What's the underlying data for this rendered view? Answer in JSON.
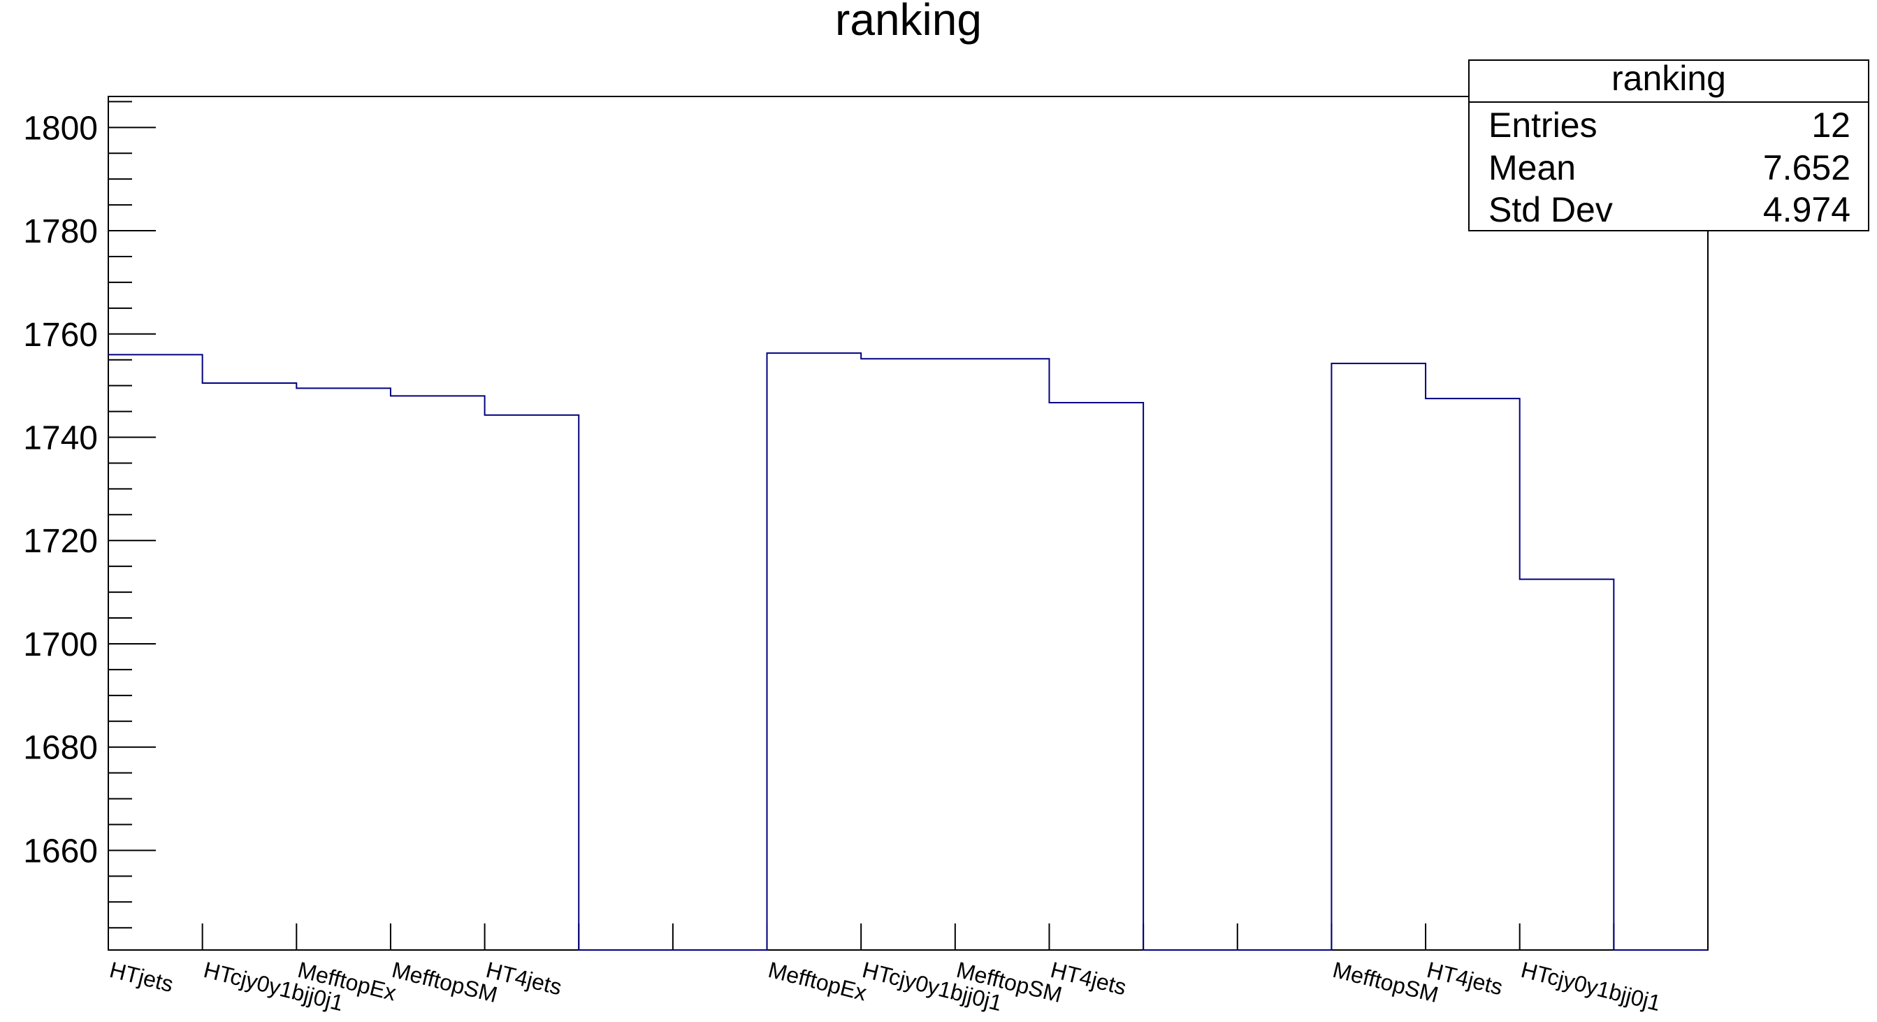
{
  "chart_data": {
    "type": "bar",
    "title": "ranking",
    "xlabel": "",
    "ylabel": "",
    "ylim": [
      1640.7,
      1806
    ],
    "yticks_major": [
      1660,
      1680,
      1700,
      1720,
      1740,
      1760,
      1780,
      1800
    ],
    "ytick_minor_step": 5,
    "nbins": 17,
    "categories": [
      "HTjets",
      "HTcjy0y1bjj0j1",
      "MefftopEx",
      "MefftopSM",
      "HT4jets",
      "",
      "",
      "MefftopEx",
      "HTcjy0y1bjj0j1",
      "MefftopSM",
      "HT4jets",
      "",
      "",
      "MefftopSM",
      "HT4jets",
      "HTcjy0y1bjj0j1",
      ""
    ],
    "values": [
      1756,
      1750.5,
      1749.5,
      1748,
      1744.3,
      0,
      0,
      1756.3,
      1755.2,
      1755.2,
      1746.7,
      0,
      0,
      1754.3,
      1747.5,
      1712.5,
      0
    ],
    "line_color": "#000080",
    "grid": false,
    "legend": "none",
    "stats_box": {
      "placement": "top-right",
      "title": "ranking",
      "rows": [
        {
          "label": "Entries",
          "value": "12"
        },
        {
          "label": "Mean",
          "value": "7.652"
        },
        {
          "label": "Std Dev",
          "value": "4.974"
        }
      ]
    }
  }
}
